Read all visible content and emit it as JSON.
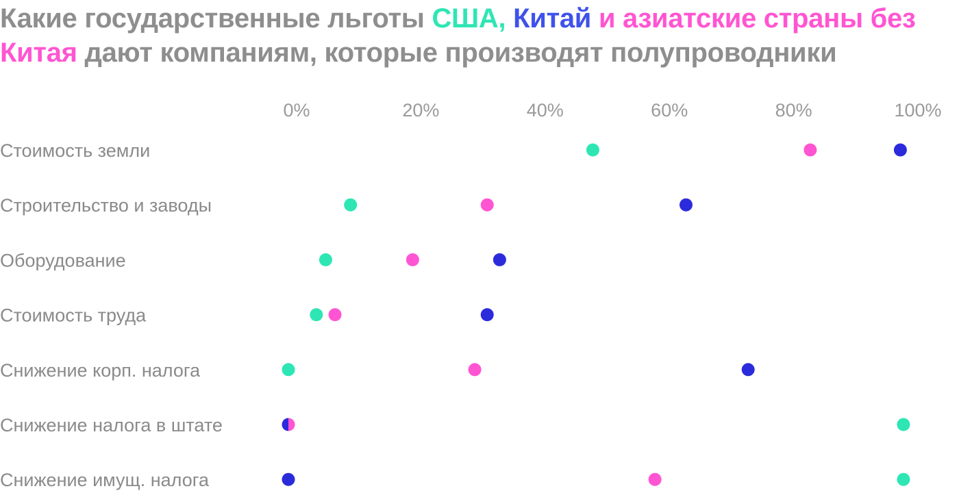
{
  "title": {
    "part1": "Какие государственные льготы ",
    "part2": "США,",
    "part3": " ",
    "part4": "Китай",
    "part5": " ",
    "part6": "и азиатские страны без Китая",
    "part7": " дают компаниям, которые производят полупроводники"
  },
  "colors": {
    "title_gray": "#8e8e8e",
    "usa": "#2ee6b4",
    "china": "#2b2bdc",
    "china_title": "#3f52ea",
    "asia": "#ff55d2"
  },
  "chart_data": {
    "type": "scatter",
    "title": "Какие государственные льготы США, Китай и азиатские страны без Китая дают компаниям, которые производят полупроводники",
    "xlim": [
      0,
      100
    ],
    "x_ticks": [
      "0%",
      "20%",
      "40%",
      "60%",
      "80%",
      "100%"
    ],
    "x_tick_values": [
      0,
      20,
      40,
      60,
      80,
      100
    ],
    "categories": [
      "Стоимость земли",
      "Строительство и заводы",
      "Оборудование",
      "Стоимость труда",
      "Снижение корп. налога",
      "Снижение налога в штате",
      "Снижение имущ. налога"
    ],
    "series": [
      {
        "key": "usa",
        "color": "#2ee6b4",
        "values": [
          49,
          10,
          6,
          4.5,
          0,
          99,
          99
        ]
      },
      {
        "key": "asia",
        "color": "#ff55d2",
        "values": [
          84,
          32,
          20,
          7.5,
          30,
          0,
          59
        ]
      },
      {
        "key": "china",
        "color": "#2b2bdc",
        "values": [
          98.5,
          64,
          34,
          32,
          74,
          0,
          0
        ]
      }
    ],
    "grid": false,
    "legend": "in-title"
  }
}
